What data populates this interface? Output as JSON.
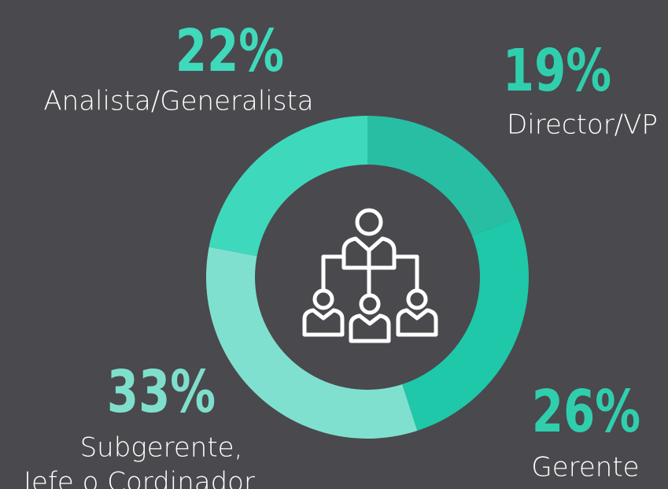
{
  "chart_data": {
    "type": "donut",
    "categories": [
      "Director/VP",
      "Gerente",
      [
        "Subgerente,",
        "Jefe o Cordinador"
      ],
      "Analista/Generalista"
    ],
    "values": [
      19,
      26,
      33,
      22
    ],
    "value_labels": [
      "19%",
      "26%",
      "33%",
      "22%"
    ],
    "colors": [
      "#27bea4",
      "#1ec8a8",
      "#80e0cf",
      "#3ed9bd"
    ],
    "label_colors": [
      "#2fcfae",
      "#2fcfae",
      "#7fdfcc",
      "#3fd9bb"
    ]
  }
}
